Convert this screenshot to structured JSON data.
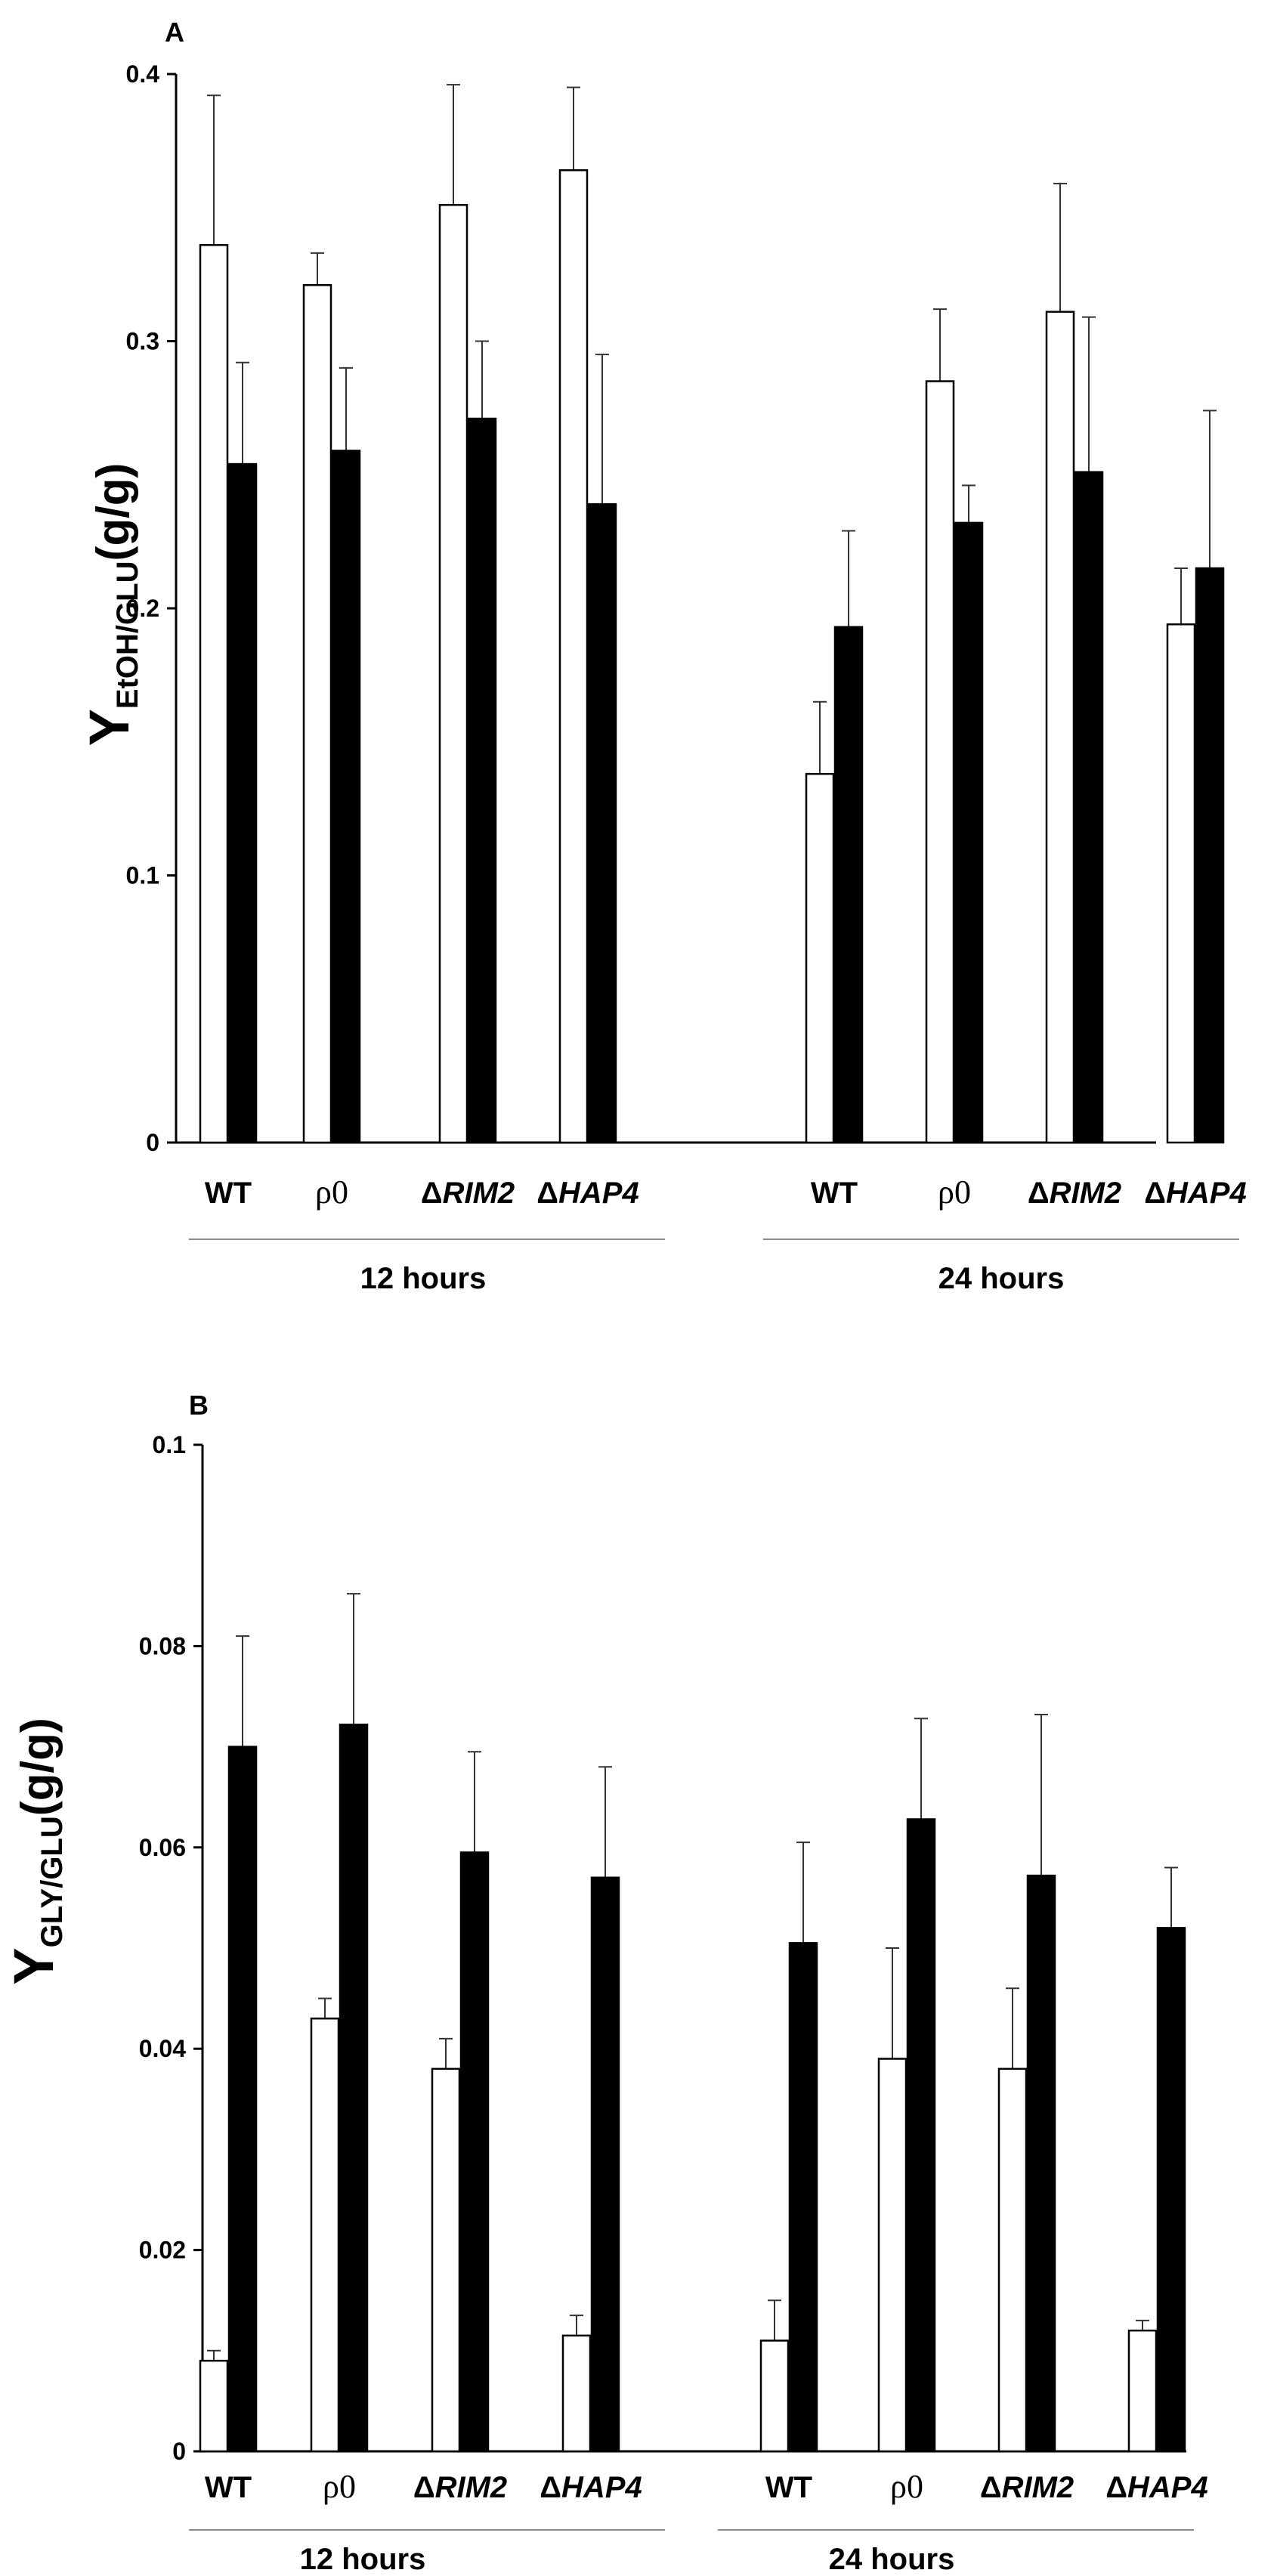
{
  "chart_data": [
    {
      "type": "bar",
      "panel": "A",
      "ylabel": {
        "main": "Y",
        "sub": "EtOH/GLU",
        "unit": "(g/g)"
      },
      "ylim": [
        0,
        0.4
      ],
      "yticks": [
        0,
        0.1,
        0.2,
        0.3,
        0.4
      ],
      "ytick_labels": [
        "0",
        "0.1",
        "0.2",
        "0.3",
        "0.4"
      ],
      "groups": [
        {
          "label": "12 hours",
          "categories": [
            {
              "strain": "WT",
              "prefix": "",
              "name": "WT",
              "italic": false
            },
            {
              "strain": "rho0",
              "prefix": "",
              "name": "ρ0",
              "italic": false
            },
            {
              "strain": "dRIM2",
              "prefix": "Δ",
              "name": "RIM2",
              "italic": true
            },
            {
              "strain": "dHAP4",
              "prefix": "Δ",
              "name": "HAP4",
              "italic": true
            }
          ]
        },
        {
          "label": "24 hours",
          "categories": [
            {
              "strain": "WT",
              "prefix": "",
              "name": "WT",
              "italic": false
            },
            {
              "strain": "rho0",
              "prefix": "",
              "name": "ρ0",
              "italic": false
            },
            {
              "strain": "dRIM2",
              "prefix": "Δ",
              "name": "RIM2",
              "italic": true
            },
            {
              "strain": "dHAP4",
              "prefix": "Δ",
              "name": "HAP4",
              "italic": true
            }
          ]
        }
      ],
      "series": [
        {
          "name": "white",
          "fill": "#ffffff",
          "values": [
            0.336,
            0.321,
            0.351,
            0.364,
            0.138,
            0.285,
            0.311,
            0.194
          ],
          "errors": [
            0.056,
            0.012,
            0.045,
            0.031,
            0.027,
            0.027,
            0.048,
            0.021
          ]
        },
        {
          "name": "black",
          "fill": "#000000",
          "values": [
            0.254,
            0.259,
            0.271,
            0.239,
            0.193,
            0.232,
            0.251,
            0.215
          ],
          "errors": [
            0.038,
            0.031,
            0.029,
            0.056,
            0.036,
            0.014,
            0.058,
            0.059
          ]
        }
      ]
    },
    {
      "type": "bar",
      "panel": "B",
      "ylabel": {
        "main": "Y",
        "sub": "GLY/GLU",
        "unit": "(g/g)"
      },
      "ylim": [
        0,
        0.1
      ],
      "yticks": [
        0,
        0.02,
        0.04,
        0.06,
        0.08,
        0.1
      ],
      "ytick_labels": [
        "0",
        "0.02",
        "0.04",
        "0.06",
        "0.08",
        "0.1"
      ],
      "groups": [
        {
          "label": "12 hours",
          "categories": [
            {
              "strain": "WT",
              "prefix": "",
              "name": "WT",
              "italic": false
            },
            {
              "strain": "rho0",
              "prefix": "",
              "name": "ρ0",
              "italic": false
            },
            {
              "strain": "dRIM2",
              "prefix": "Δ",
              "name": "RIM2",
              "italic": true
            },
            {
              "strain": "dHAP4",
              "prefix": "Δ",
              "name": "HAP4",
              "italic": true
            }
          ]
        },
        {
          "label": "24 hours",
          "categories": [
            {
              "strain": "WT",
              "prefix": "",
              "name": "WT",
              "italic": false
            },
            {
              "strain": "rho0",
              "prefix": "",
              "name": "ρ0",
              "italic": false
            },
            {
              "strain": "dRIM2",
              "prefix": "Δ",
              "name": "RIM2",
              "italic": true
            },
            {
              "strain": "dHAP4",
              "prefix": "Δ",
              "name": "HAP4",
              "italic": true
            }
          ]
        }
      ],
      "series": [
        {
          "name": "white",
          "fill": "#ffffff",
          "values": [
            0.009,
            0.043,
            0.038,
            0.0115,
            0.011,
            0.039,
            0.038,
            0.012
          ],
          "errors": [
            0.001,
            0.002,
            0.003,
            0.002,
            0.004,
            0.011,
            0.008,
            0.001
          ]
        },
        {
          "name": "black",
          "fill": "#000000",
          "values": [
            0.07,
            0.0722,
            0.0595,
            0.057,
            0.0505,
            0.0628,
            0.0572,
            0.052
          ],
          "errors": [
            0.011,
            0.013,
            0.01,
            0.011,
            0.01,
            0.01,
            0.016,
            0.006
          ]
        }
      ]
    }
  ]
}
